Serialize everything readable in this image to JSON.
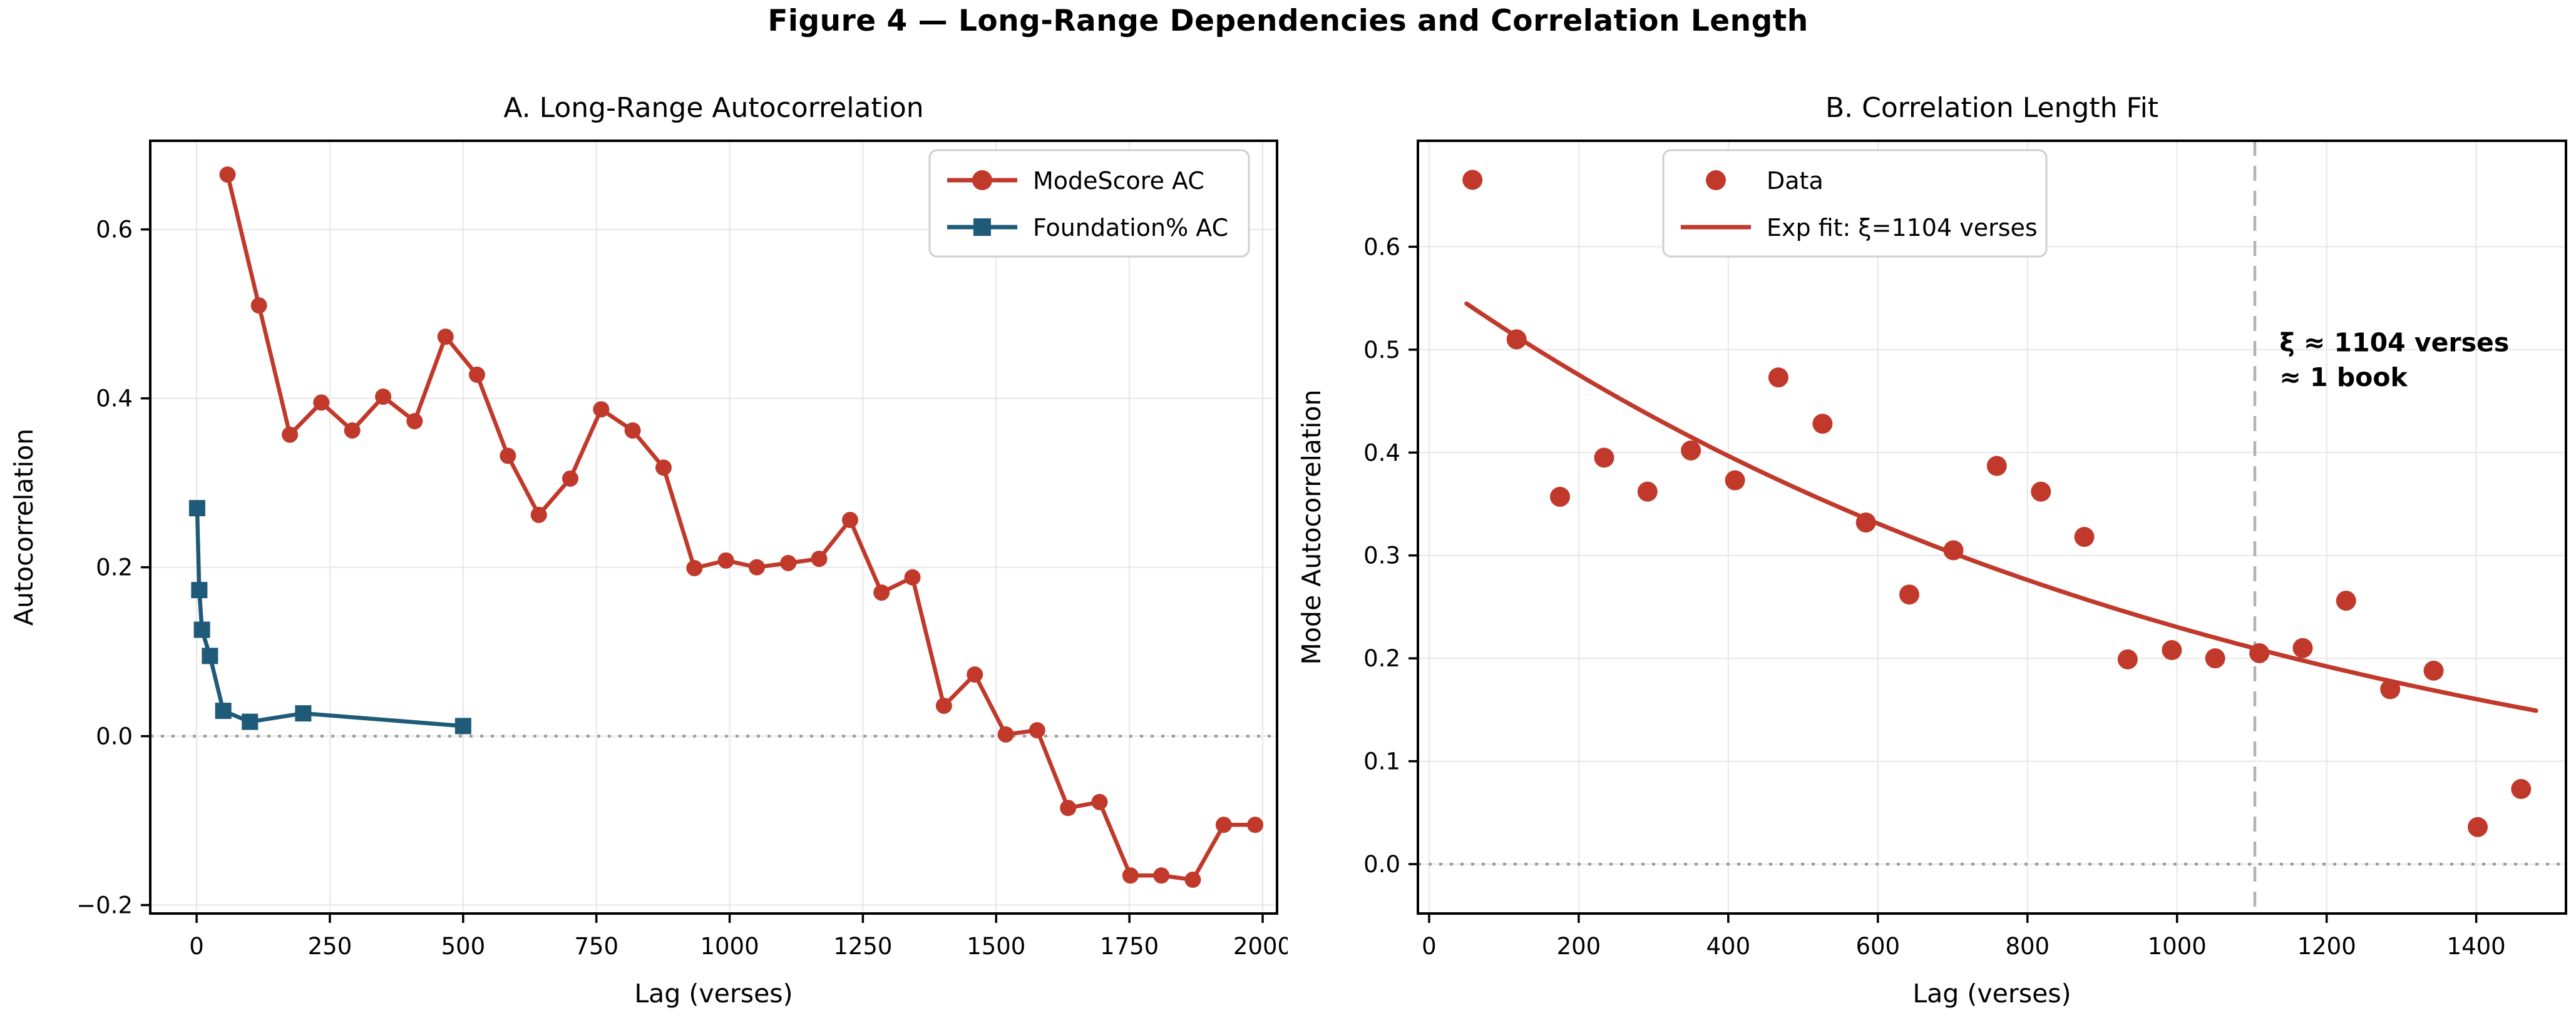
{
  "figure": {
    "title": "Figure 4 — Long-Range Dependencies and Correlation Length"
  },
  "colors": {
    "red_series": "#c0392b",
    "blue_series": "#1f5a78",
    "grid": "#e7e7e7",
    "zero_line": "#9e9e9e",
    "vline": "#b3b3b3",
    "text": "#000000",
    "legend_border": "#cfcfcf"
  },
  "chart_data": [
    {
      "id": "panel-a",
      "type": "line",
      "title": "A. Long-Range Autocorrelation",
      "xlabel": "Lag (verses)",
      "ylabel": "Autocorrelation",
      "xlim": [
        -87,
        2027
      ],
      "ylim": [
        -0.21,
        0.705
      ],
      "xticks": [
        0,
        250,
        500,
        750,
        1000,
        1250,
        1500,
        1750,
        2000
      ],
      "yticks": [
        -0.2,
        0.0,
        0.2,
        0.4,
        0.6
      ],
      "ytick_decimals": 1,
      "grid": true,
      "zero_line_y": 0,
      "legend_position": "top-right",
      "legend": {
        "entries": [
          {
            "label": "ModeScore AC",
            "color": "#c0392b",
            "marker": "circle",
            "line": true
          },
          {
            "label": "Foundation% AC",
            "color": "#1f5a78",
            "marker": "square",
            "line": true
          }
        ]
      },
      "series": [
        {
          "name": "ModeScore AC",
          "color": "#c0392b",
          "marker": "circle",
          "marker_size": 13,
          "line_width": 6.5,
          "x": [
            58,
            117,
            175,
            234,
            292,
            350,
            409,
            467,
            526,
            584,
            642,
            701,
            759,
            818,
            876,
            934,
            993,
            1051,
            1110,
            1168,
            1226,
            1285,
            1343,
            1402,
            1460,
            1518,
            1577,
            1635,
            1694,
            1752,
            1810,
            1869,
            1927,
            1986
          ],
          "values": [
            0.665,
            0.51,
            0.357,
            0.395,
            0.362,
            0.402,
            0.373,
            0.473,
            0.428,
            0.332,
            0.262,
            0.305,
            0.387,
            0.362,
            0.318,
            0.199,
            0.208,
            0.2,
            0.205,
            0.21,
            0.256,
            0.17,
            0.188,
            0.036,
            0.073,
            0.002,
            0.007,
            -0.085,
            -0.078,
            -0.165,
            -0.165,
            -0.17,
            -0.105,
            -0.105
          ]
        },
        {
          "name": "Foundation% AC",
          "color": "#1f5a78",
          "marker": "square",
          "marker_size": 13,
          "line_width": 6.5,
          "x": [
            1,
            5,
            10,
            25,
            50,
            100,
            200,
            500
          ],
          "values": [
            0.27,
            0.173,
            0.126,
            0.095,
            0.03,
            0.017,
            0.027,
            0.012
          ]
        }
      ]
    },
    {
      "id": "panel-b",
      "type": "scatter",
      "title": "B. Correlation Length Fit",
      "xlabel": "Lag (verses)",
      "ylabel": "Mode Autocorrelation",
      "xlim": [
        -15,
        1520
      ],
      "ylim": [
        -0.048,
        0.703
      ],
      "xticks": [
        0,
        200,
        400,
        600,
        800,
        1000,
        1200,
        1400
      ],
      "yticks": [
        0.0,
        0.1,
        0.2,
        0.3,
        0.4,
        0.5,
        0.6
      ],
      "ytick_decimals": 1,
      "grid": true,
      "zero_line_y": 0,
      "vline": {
        "x": 1104
      },
      "annotation": {
        "x": 1137,
        "lines": [
          {
            "text": "ξ ≈ 1104 verses",
            "y": 0.507
          },
          {
            "text": "≈ 1 book",
            "y": 0.473
          }
        ]
      },
      "legend_position": "top-center",
      "legend": {
        "entries": [
          {
            "label": "Data",
            "color": "#c0392b",
            "marker": "circle",
            "line": false
          },
          {
            "label": "Exp fit: ξ=1104 verses",
            "color": "#c0392b",
            "marker": null,
            "line": true
          }
        ]
      },
      "series": [
        {
          "name": "Data",
          "color": "#c0392b",
          "marker": "circle",
          "marker_size": 16,
          "line_width": 0,
          "scatter": true,
          "x": [
            58,
            117,
            175,
            234,
            292,
            350,
            409,
            467,
            526,
            584,
            642,
            701,
            759,
            818,
            876,
            934,
            993,
            1051,
            1110,
            1168,
            1226,
            1285,
            1343,
            1402,
            1460
          ],
          "values": [
            0.665,
            0.51,
            0.357,
            0.395,
            0.362,
            0.402,
            0.373,
            0.473,
            0.428,
            0.332,
            0.262,
            0.305,
            0.387,
            0.362,
            0.318,
            0.199,
            0.208,
            0.2,
            0.205,
            0.21,
            0.256,
            0.17,
            0.188,
            0.036,
            0.073
          ]
        },
        {
          "name": "Exp fit: ξ=1104 verses",
          "color": "#c0392b",
          "line_width": 7,
          "fit": {
            "amplitude": 0.57,
            "xi": 1104,
            "x_start": 50,
            "x_end": 1480
          }
        }
      ]
    }
  ]
}
